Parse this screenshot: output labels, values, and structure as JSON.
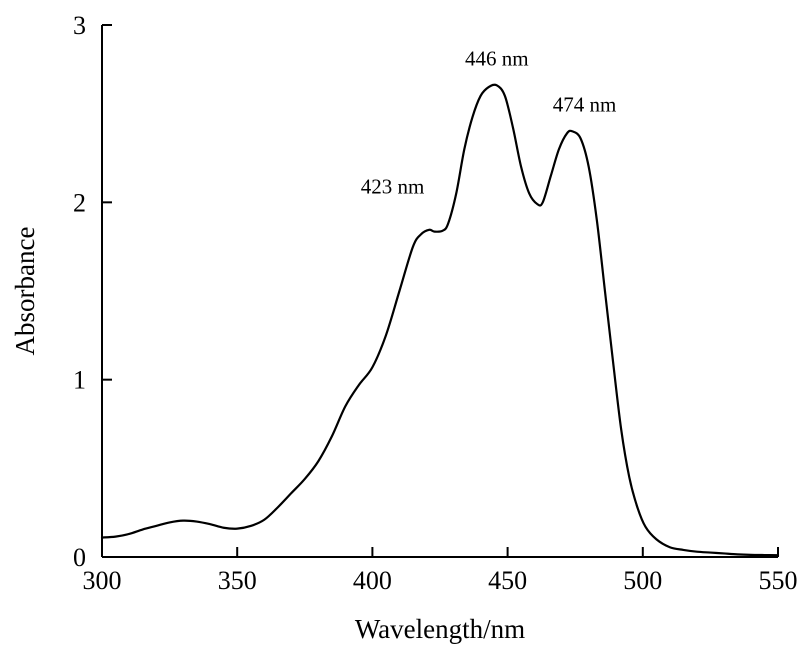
{
  "chart_data": {
    "type": "line",
    "title": "",
    "xlabel": "Wavelength/nm",
    "ylabel": "Absorbance",
    "xlim": [
      300,
      550
    ],
    "ylim": [
      0,
      3
    ],
    "x_ticks": [
      300,
      350,
      400,
      450,
      500,
      550
    ],
    "y_ticks": [
      0,
      1,
      2,
      3
    ],
    "grid": false,
    "legend": "none",
    "line_color": "#000000",
    "series": [
      {
        "x": [
          300,
          305,
          310,
          315,
          320,
          325,
          330,
          335,
          340,
          345,
          350,
          355,
          360,
          365,
          370,
          375,
          380,
          385,
          390,
          395,
          400,
          405,
          410,
          415,
          418,
          421,
          423,
          426,
          428,
          431,
          434,
          437,
          440,
          443,
          446,
          449,
          452,
          455,
          458,
          461,
          463,
          466,
          469,
          472,
          474,
          477,
          480,
          483,
          486,
          489,
          492,
          495,
          498,
          501,
          505,
          510,
          515,
          520,
          525,
          530,
          535,
          540,
          545,
          550
        ],
        "values": [
          0.11,
          0.115,
          0.13,
          0.155,
          0.175,
          0.195,
          0.205,
          0.2,
          0.185,
          0.165,
          0.16,
          0.175,
          0.21,
          0.28,
          0.36,
          0.44,
          0.54,
          0.68,
          0.85,
          0.97,
          1.07,
          1.25,
          1.5,
          1.75,
          1.82,
          1.845,
          1.835,
          1.84,
          1.88,
          2.05,
          2.3,
          2.48,
          2.6,
          2.65,
          2.66,
          2.6,
          2.42,
          2.2,
          2.05,
          1.99,
          2.0,
          2.15,
          2.3,
          2.39,
          2.4,
          2.36,
          2.2,
          1.9,
          1.5,
          1.1,
          0.72,
          0.45,
          0.28,
          0.17,
          0.1,
          0.055,
          0.04,
          0.03,
          0.025,
          0.02,
          0.015,
          0.012,
          0.011,
          0.01
        ]
      }
    ],
    "annotations": [
      {
        "text": "423 nm",
        "x": 423,
        "y": 1.835
      },
      {
        "text": "446 nm",
        "x": 446,
        "y": 2.66
      },
      {
        "text": "474 nm",
        "x": 474,
        "y": 2.4
      }
    ]
  }
}
